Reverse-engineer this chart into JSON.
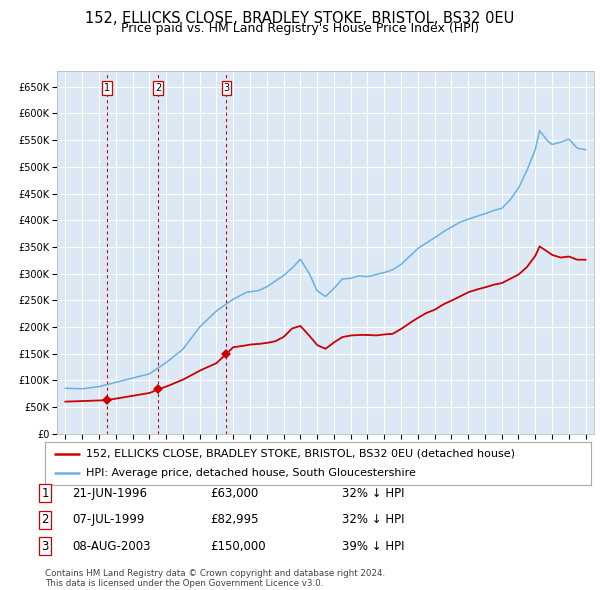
{
  "title1": "152, ELLICKS CLOSE, BRADLEY STOKE, BRISTOL, BS32 0EU",
  "title2": "Price paid vs. HM Land Registry's House Price Index (HPI)",
  "bg_color": "#dce9f5",
  "plot_bg_color": "#dce9f5",
  "grid_color": "#ffffff",
  "hpi_color": "#6ab0e0",
  "price_color": "#cc0000",
  "ylim": [
    0,
    680000
  ],
  "yticks": [
    0,
    50000,
    100000,
    150000,
    200000,
    250000,
    300000,
    350000,
    400000,
    450000,
    500000,
    550000,
    600000,
    650000
  ],
  "xlim_start": 1993.5,
  "xlim_end": 2025.5,
  "sale_dates": [
    1996.47,
    1999.52,
    2003.6
  ],
  "sale_prices": [
    63000,
    82995,
    150000
  ],
  "sale_labels": [
    "1",
    "2",
    "3"
  ],
  "legend_price_label": "152, ELLICKS CLOSE, BRADLEY STOKE, BRISTOL, BS32 0EU (detached house)",
  "legend_hpi_label": "HPI: Average price, detached house, South Gloucestershire",
  "table_rows": [
    [
      "1",
      "21-JUN-1996",
      "£63,000",
      "32% ↓ HPI"
    ],
    [
      "2",
      "07-JUL-1999",
      "£82,995",
      "32% ↓ HPI"
    ],
    [
      "3",
      "08-AUG-2003",
      "£150,000",
      "39% ↓ HPI"
    ]
  ],
  "footnote": "Contains HM Land Registry data © Crown copyright and database right 2024.\nThis data is licensed under the Open Government Licence v3.0.",
  "title_fontsize": 10.5,
  "subtitle_fontsize": 9,
  "tick_fontsize": 7,
  "legend_fontsize": 8,
  "table_fontsize": 8.5
}
